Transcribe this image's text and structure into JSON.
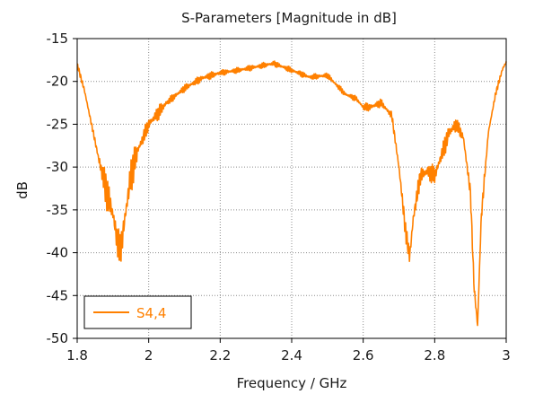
{
  "chart_data": {
    "type": "line",
    "title": "S-Parameters [Magnitude in dB]",
    "xlabel": "Frequency / GHz",
    "ylabel": "dB",
    "xlim": [
      1.8,
      3.0
    ],
    "ylim": [
      -50,
      -15
    ],
    "xticks": [
      1.8,
      2.0,
      2.2,
      2.4,
      2.6,
      2.8,
      3.0
    ],
    "xtick_labels": [
      "1.8",
      "2",
      "2.2",
      "2.4",
      "2.6",
      "2.8",
      "3"
    ],
    "yticks": [
      -15,
      -20,
      -25,
      -30,
      -35,
      -40,
      -45,
      -50
    ],
    "ytick_labels": [
      "-15",
      "-20",
      "-25",
      "-30",
      "-35",
      "-40",
      "-45",
      "-50"
    ],
    "grid": true,
    "legend_position": "bottom-left",
    "series": [
      {
        "name": "S4,4",
        "color": "#ff8000",
        "x": [
          1.8,
          1.82,
          1.84,
          1.86,
          1.88,
          1.9,
          1.91,
          1.92,
          1.93,
          1.95,
          1.97,
          2.0,
          2.05,
          2.1,
          2.15,
          2.2,
          2.25,
          2.3,
          2.35,
          2.4,
          2.45,
          2.5,
          2.55,
          2.58,
          2.6,
          2.62,
          2.65,
          2.68,
          2.7,
          2.72,
          2.73,
          2.74,
          2.76,
          2.78,
          2.8,
          2.82,
          2.84,
          2.86,
          2.88,
          2.9,
          2.91,
          2.92,
          2.93,
          2.95,
          2.97,
          2.99,
          3.0
        ],
        "values": [
          -18.0,
          -21.0,
          -25.0,
          -29.0,
          -32.5,
          -35.5,
          -38.0,
          -40.0,
          -37.0,
          -31.0,
          -28.0,
          -25.0,
          -22.5,
          -20.8,
          -19.6,
          -19.0,
          -18.7,
          -18.3,
          -17.9,
          -18.7,
          -19.5,
          -19.3,
          -21.5,
          -22.0,
          -23.0,
          -23.0,
          -22.5,
          -24.0,
          -30.0,
          -38.0,
          -40.5,
          -36.0,
          -31.0,
          -30.5,
          -31.0,
          -28.5,
          -26.0,
          -25.0,
          -26.5,
          -33.0,
          -44.0,
          -48.5,
          -36.0,
          -26.0,
          -21.5,
          -18.5,
          -17.8
        ]
      }
    ]
  }
}
